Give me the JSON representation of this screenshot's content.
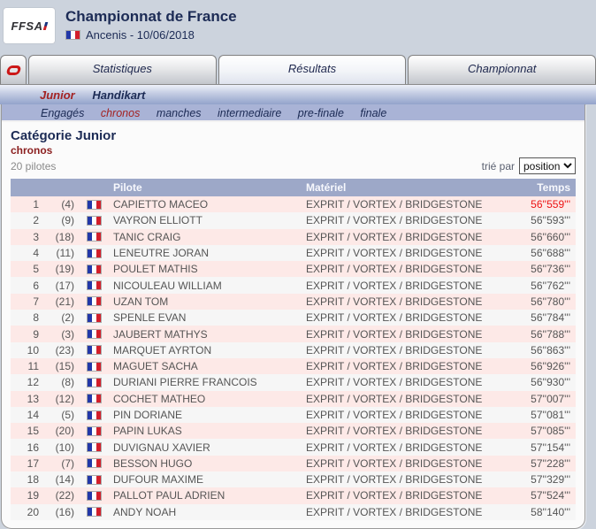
{
  "header": {
    "logo": "FFSA",
    "title": "Championnat de France",
    "location_date": "Ancenis - 10/06/2018"
  },
  "tabs": [
    {
      "label": "Statistiques",
      "active": false
    },
    {
      "label": "Résultats",
      "active": true
    },
    {
      "label": "Championnat",
      "active": false
    }
  ],
  "category_nav": [
    {
      "label": "Junior",
      "active": true
    },
    {
      "label": "Handikart",
      "active": false
    }
  ],
  "session_nav": [
    {
      "label": "Engagés",
      "active": false
    },
    {
      "label": "chronos",
      "active": true
    },
    {
      "label": "manches",
      "active": false
    },
    {
      "label": "intermediaire",
      "active": false
    },
    {
      "label": "pre-finale",
      "active": false
    },
    {
      "label": "finale",
      "active": false
    }
  ],
  "main": {
    "heading": "Catégorie Junior",
    "subheading": "chronos",
    "pilot_count": "20 pilotes",
    "sort_label": "trié par",
    "sort_value": "position"
  },
  "table": {
    "headers": {
      "pilot": "Pilote",
      "material": "Matériel",
      "time": "Temps"
    },
    "rows": [
      {
        "pos": "1",
        "kart": "(4)",
        "name": "CAPIETTO MACEO",
        "material": "EXPRIT / VORTEX / BRIDGESTONE",
        "time": "56''559'''",
        "red": true
      },
      {
        "pos": "2",
        "kart": "(9)",
        "name": "VAYRON ELLIOTT",
        "material": "EXPRIT / VORTEX / BRIDGESTONE",
        "time": "56''593'''",
        "red": false
      },
      {
        "pos": "3",
        "kart": "(18)",
        "name": "TANIC CRAIG",
        "material": "EXPRIT / VORTEX / BRIDGESTONE",
        "time": "56''660'''",
        "red": false
      },
      {
        "pos": "4",
        "kart": "(11)",
        "name": "LENEUTRE JORAN",
        "material": "EXPRIT / VORTEX / BRIDGESTONE",
        "time": "56''688'''",
        "red": false
      },
      {
        "pos": "5",
        "kart": "(19)",
        "name": "POULET MATHIS",
        "material": "EXPRIT / VORTEX / BRIDGESTONE",
        "time": "56''736'''",
        "red": false
      },
      {
        "pos": "6",
        "kart": "(17)",
        "name": "NICOULEAU WILLIAM",
        "material": "EXPRIT / VORTEX / BRIDGESTONE",
        "time": "56''762'''",
        "red": false
      },
      {
        "pos": "7",
        "kart": "(21)",
        "name": "UZAN TOM",
        "material": "EXPRIT / VORTEX / BRIDGESTONE",
        "time": "56''780'''",
        "red": false
      },
      {
        "pos": "8",
        "kart": "(2)",
        "name": "SPENLE EVAN",
        "material": "EXPRIT / VORTEX / BRIDGESTONE",
        "time": "56''784'''",
        "red": false
      },
      {
        "pos": "9",
        "kart": "(3)",
        "name": "JAUBERT MATHYS",
        "material": "EXPRIT / VORTEX / BRIDGESTONE",
        "time": "56''788'''",
        "red": false
      },
      {
        "pos": "10",
        "kart": "(23)",
        "name": "MARQUET AYRTON",
        "material": "EXPRIT / VORTEX / BRIDGESTONE",
        "time": "56''863'''",
        "red": false
      },
      {
        "pos": "11",
        "kart": "(15)",
        "name": "MAGUET SACHA",
        "material": "EXPRIT / VORTEX / BRIDGESTONE",
        "time": "56''926'''",
        "red": false
      },
      {
        "pos": "12",
        "kart": "(8)",
        "name": "DURIANI PIERRE FRANCOIS",
        "material": "EXPRIT / VORTEX / BRIDGESTONE",
        "time": "56''930'''",
        "red": false
      },
      {
        "pos": "13",
        "kart": "(12)",
        "name": "COCHET MATHEO",
        "material": "EXPRIT / VORTEX / BRIDGESTONE",
        "time": "57''007'''",
        "red": false
      },
      {
        "pos": "14",
        "kart": "(5)",
        "name": "PIN DORIANE",
        "material": "EXPRIT / VORTEX / BRIDGESTONE",
        "time": "57''081'''",
        "red": false
      },
      {
        "pos": "15",
        "kart": "(20)",
        "name": "PAPIN LUKAS",
        "material": "EXPRIT / VORTEX / BRIDGESTONE",
        "time": "57''085'''",
        "red": false
      },
      {
        "pos": "16",
        "kart": "(10)",
        "name": "DUVIGNAU XAVIER",
        "material": "EXPRIT / VORTEX / BRIDGESTONE",
        "time": "57''154'''",
        "red": false
      },
      {
        "pos": "17",
        "kart": "(7)",
        "name": "BESSON HUGO",
        "material": "EXPRIT / VORTEX / BRIDGESTONE",
        "time": "57''228'''",
        "red": false
      },
      {
        "pos": "18",
        "kart": "(14)",
        "name": "DUFOUR MAXIME",
        "material": "EXPRIT / VORTEX / BRIDGESTONE",
        "time": "57''329'''",
        "red": false
      },
      {
        "pos": "19",
        "kart": "(22)",
        "name": "PALLOT PAUL ADRIEN",
        "material": "EXPRIT / VORTEX / BRIDGESTONE",
        "time": "57''524'''",
        "red": false
      },
      {
        "pos": "20",
        "kart": "(16)",
        "name": "ANDY NOAH",
        "material": "EXPRIT / VORTEX / BRIDGESTONE",
        "time": "58''140'''",
        "red": false
      }
    ]
  },
  "colors": {
    "navy": "#1c2b55",
    "accent_red": "#ec1313",
    "band_lavender": "#a9b3d6",
    "table_header": "#9da8c8",
    "row_pink": "#fde9e7",
    "flag_blue": "#2238a8",
    "flag_red": "#d21f2b"
  }
}
